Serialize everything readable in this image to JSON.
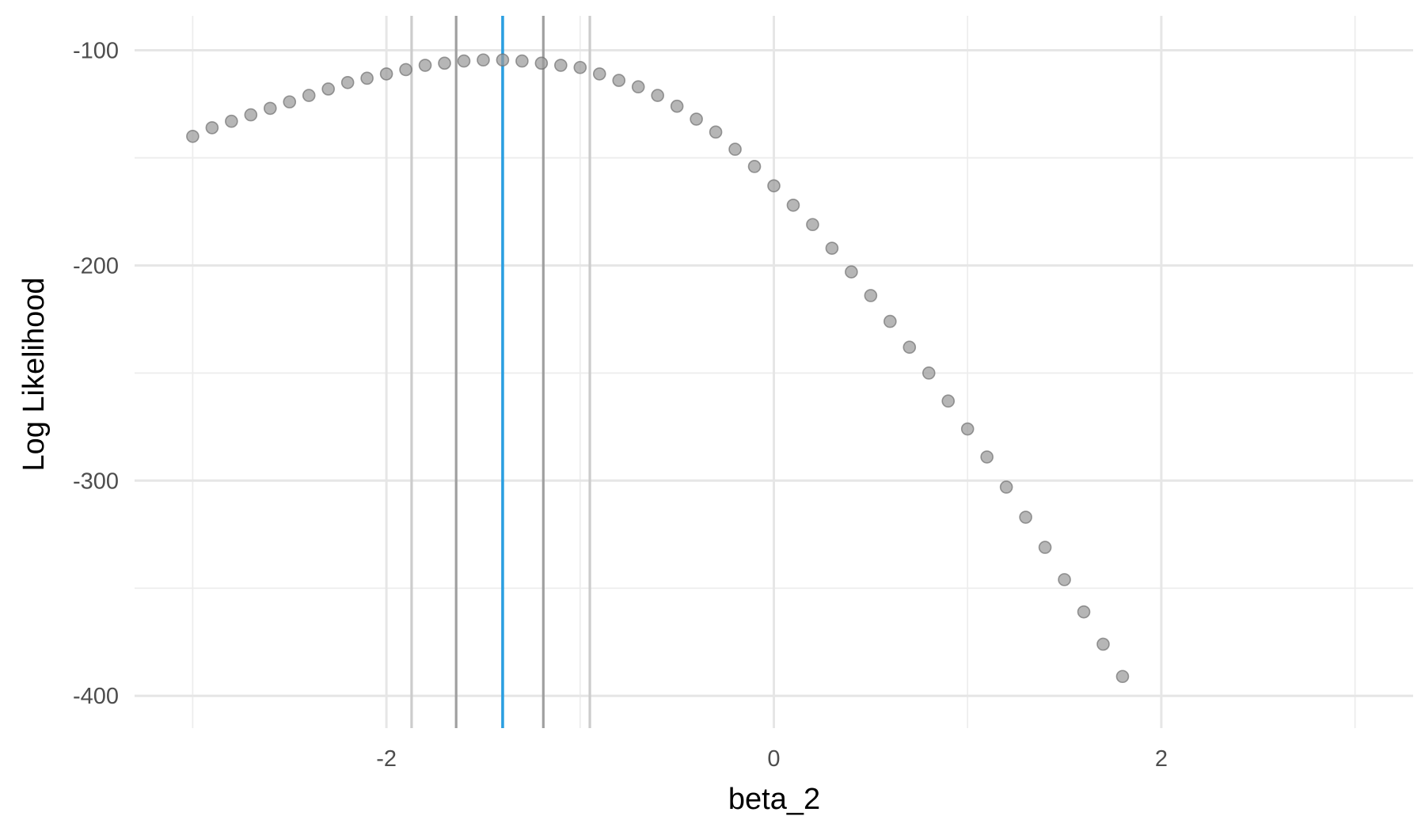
{
  "chart_data": {
    "type": "scatter",
    "title": "",
    "xlabel": "beta_2",
    "ylabel": "Log Likelihood",
    "xlim": [
      -3.3,
      3.3
    ],
    "ylim": [
      -415,
      -84
    ],
    "x_ticks": [
      -2,
      0,
      2
    ],
    "x_tick_labels": [
      "-2",
      "0",
      "2"
    ],
    "y_ticks": [
      -100,
      -200,
      -300,
      -400
    ],
    "y_tick_labels": [
      "-100",
      "-200",
      "-300",
      "-400"
    ],
    "x_minor_ticks": [
      -3,
      -1,
      1,
      3
    ],
    "y_minor_ticks": [
      -150,
      -250,
      -350
    ],
    "grid": true,
    "legend": "none",
    "points": {
      "x": [
        -3.0,
        -2.9,
        -2.8,
        -2.7,
        -2.6,
        -2.5,
        -2.4,
        -2.3,
        -2.2,
        -2.1,
        -2.0,
        -1.9,
        -1.8,
        -1.7,
        -1.6,
        -1.5,
        -1.4,
        -1.3,
        -1.2,
        -1.1,
        -1.0,
        -0.9,
        -0.8,
        -0.7,
        -0.6,
        -0.5,
        -0.4,
        -0.3,
        -0.2,
        -0.1,
        0.0,
        0.1,
        0.2,
        0.3,
        0.4,
        0.5,
        0.6,
        0.7,
        0.8,
        0.9,
        1.0,
        1.1,
        1.2,
        1.3,
        1.4,
        1.5,
        1.6,
        1.7,
        1.8
      ],
      "y": [
        -140,
        -136,
        -133,
        -130,
        -127,
        -124,
        -121,
        -118,
        -115,
        -113,
        -111,
        -109,
        -107,
        -106,
        -105,
        -104.5,
        -104.5,
        -105,
        -106,
        -107,
        -108,
        -111,
        -114,
        -117,
        -121,
        -126,
        -132,
        -138,
        -146,
        -154,
        -163,
        -172,
        -181,
        -192,
        -203,
        -214,
        -226,
        -238,
        -250,
        -263,
        -276,
        -289,
        -303,
        -317,
        -331,
        -346,
        -361,
        -376,
        -391
      ]
    },
    "vlines": [
      {
        "x": -1.87,
        "role": "outer-interval",
        "color": "#cccccc"
      },
      {
        "x": -1.64,
        "role": "inner-interval",
        "color": "#a0a0a0"
      },
      {
        "x": -1.4,
        "role": "estimate",
        "color": "#2b9fe1"
      },
      {
        "x": -1.19,
        "role": "inner-interval",
        "color": "#a0a0a0"
      },
      {
        "x": -0.95,
        "role": "outer-interval",
        "color": "#cccccc"
      }
    ],
    "colors": {
      "point_fill": "#9a9a9a",
      "point_stroke": "#707070",
      "estimate_line": "#2b9fe1",
      "inner_lines": "#a0a0a0",
      "outer_lines": "#cccccc"
    }
  }
}
